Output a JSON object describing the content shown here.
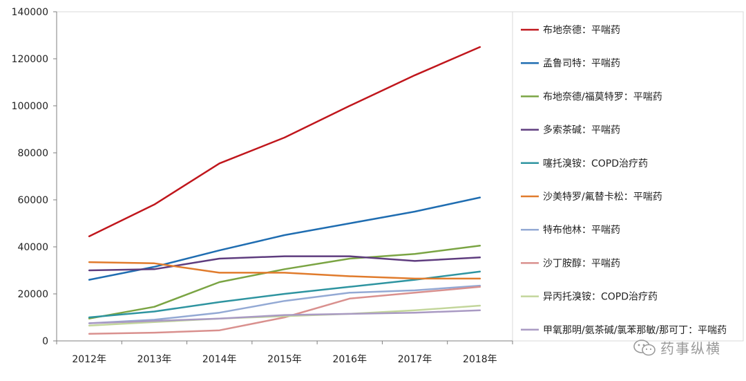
{
  "chart_data": {
    "type": "line",
    "categories": [
      "2012年",
      "2013年",
      "2014年",
      "2015年",
      "2016年",
      "2017年",
      "2018年"
    ],
    "ylim": [
      0,
      140000
    ],
    "yticks": [
      0,
      20000,
      40000,
      60000,
      80000,
      100000,
      120000,
      140000
    ],
    "ytick_labels": [
      "0",
      "20000",
      "40000",
      "60000",
      "80000",
      "100000",
      "120000",
      "140000"
    ],
    "grid": false,
    "legend": "right",
    "series": [
      {
        "name": "布地奈德：平喘药",
        "color": "#c0161c",
        "values": [
          44500,
          58000,
          75500,
          86500,
          100000,
          113000,
          125000
        ]
      },
      {
        "name": "孟鲁司特：平喘药",
        "color": "#1f6db1",
        "values": [
          26000,
          31500,
          38500,
          45000,
          50000,
          55000,
          61000
        ]
      },
      {
        "name": "布地奈德/福莫特罗：平喘药",
        "color": "#7aa443",
        "values": [
          9500,
          14500,
          25000,
          30500,
          35000,
          37000,
          40500
        ]
      },
      {
        "name": "多索茶碱：平喘药",
        "color": "#5e3c7e",
        "values": [
          30000,
          30500,
          35000,
          36000,
          36000,
          34000,
          35500
        ]
      },
      {
        "name": "噻托溴铵：COPD治疗药",
        "color": "#2e94a0",
        "values": [
          10000,
          12500,
          16500,
          20000,
          23000,
          26000,
          29500
        ]
      },
      {
        "name": "沙美特罗/氟替卡松：平喘药",
        "color": "#e07b2c",
        "values": [
          33500,
          33000,
          29000,
          29000,
          27500,
          26500,
          26500
        ]
      },
      {
        "name": "特布他林：平喘药",
        "color": "#93a9d4",
        "values": [
          7500,
          9000,
          12000,
          17000,
          20500,
          21500,
          23500
        ]
      },
      {
        "name": "沙丁胺醇：平喘药",
        "color": "#d9908e",
        "values": [
          3000,
          3500,
          4500,
          10000,
          18000,
          20500,
          23000
        ]
      },
      {
        "name": "异丙托溴铵：COPD治疗药",
        "color": "#c3d69b",
        "values": [
          6500,
          8000,
          9500,
          10500,
          11500,
          13000,
          15000
        ]
      },
      {
        "name": "甲氧那明/氨茶碱/氯苯那敏/那可丁：平喘药",
        "color": "#a99ac3",
        "values": [
          7500,
          8500,
          9500,
          11000,
          11500,
          12000,
          13000
        ]
      }
    ]
  },
  "watermark": {
    "text": "药事纵横",
    "icon": "wechat-icon"
  }
}
